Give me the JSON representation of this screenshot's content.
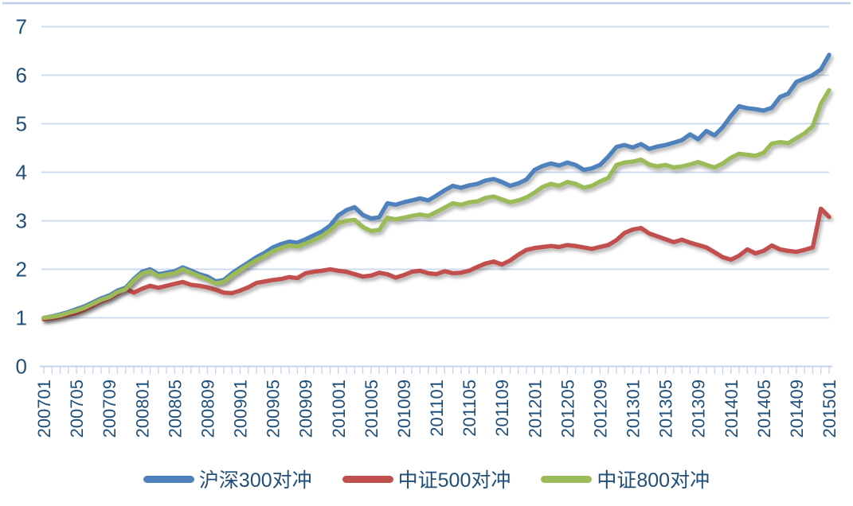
{
  "chart_data": {
    "type": "line",
    "x": [
      "200701",
      "200702",
      "200703",
      "200704",
      "200705",
      "200706",
      "200707",
      "200708",
      "200709",
      "200710",
      "200711",
      "200712",
      "200801",
      "200802",
      "200803",
      "200804",
      "200805",
      "200806",
      "200807",
      "200808",
      "200809",
      "200810",
      "200811",
      "200812",
      "200901",
      "200902",
      "200903",
      "200904",
      "200905",
      "200906",
      "200907",
      "200908",
      "200909",
      "200910",
      "200911",
      "200912",
      "201001",
      "201002",
      "201003",
      "201004",
      "201005",
      "201006",
      "201007",
      "201008",
      "201009",
      "201010",
      "201011",
      "201012",
      "201101",
      "201102",
      "201103",
      "201104",
      "201105",
      "201106",
      "201107",
      "201108",
      "201109",
      "201110",
      "201111",
      "201112",
      "201201",
      "201202",
      "201203",
      "201204",
      "201205",
      "201206",
      "201207",
      "201208",
      "201209",
      "201210",
      "201211",
      "201212",
      "201301",
      "201302",
      "201303",
      "201304",
      "201305",
      "201306",
      "201307",
      "201308",
      "201309",
      "201310",
      "201311",
      "201312",
      "201401",
      "201402",
      "201403",
      "201404",
      "201405",
      "201406",
      "201407",
      "201408",
      "201409",
      "201410",
      "201411",
      "201412",
      "201501"
    ],
    "xtick_labels": [
      "200701",
      "200705",
      "200709",
      "200801",
      "200805",
      "200809",
      "200901",
      "200905",
      "200909",
      "201001",
      "201005",
      "201009",
      "201101",
      "201105",
      "201109",
      "201201",
      "201205",
      "201209",
      "201301",
      "201305",
      "201309",
      "201401",
      "201405",
      "201409",
      "201501"
    ],
    "xtick_every": 4,
    "yticks": [
      0,
      1,
      2,
      3,
      4,
      5,
      6,
      7
    ],
    "ylim": [
      0,
      7
    ],
    "grid": "horizontal",
    "legend_position": "bottom",
    "series": [
      {
        "name": "沪深300对冲",
        "color": "#4F81BD",
        "values": [
          1.0,
          1.03,
          1.07,
          1.12,
          1.18,
          1.24,
          1.32,
          1.4,
          1.46,
          1.56,
          1.62,
          1.8,
          1.95,
          2.0,
          1.9,
          1.93,
          1.96,
          2.04,
          1.97,
          1.9,
          1.85,
          1.75,
          1.78,
          1.92,
          2.03,
          2.14,
          2.25,
          2.34,
          2.45,
          2.52,
          2.57,
          2.55,
          2.62,
          2.7,
          2.78,
          2.9,
          3.11,
          3.22,
          3.28,
          3.12,
          3.05,
          3.07,
          3.36,
          3.33,
          3.38,
          3.42,
          3.46,
          3.42,
          3.52,
          3.63,
          3.72,
          3.68,
          3.73,
          3.76,
          3.83,
          3.86,
          3.8,
          3.72,
          3.77,
          3.85,
          4.05,
          4.13,
          4.18,
          4.14,
          4.2,
          4.15,
          4.05,
          4.08,
          4.15,
          4.32,
          4.52,
          4.56,
          4.51,
          4.58,
          4.48,
          4.53,
          4.56,
          4.61,
          4.66,
          4.78,
          4.68,
          4.85,
          4.76,
          4.93,
          5.16,
          5.36,
          5.32,
          5.3,
          5.27,
          5.33,
          5.55,
          5.62,
          5.86,
          5.93,
          6.0,
          6.12,
          6.42
        ]
      },
      {
        "name": "中证500对冲",
        "color": "#C0504D",
        "values": [
          0.97,
          0.99,
          1.02,
          1.06,
          1.1,
          1.17,
          1.25,
          1.34,
          1.4,
          1.5,
          1.6,
          1.52,
          1.6,
          1.66,
          1.62,
          1.66,
          1.7,
          1.74,
          1.68,
          1.66,
          1.63,
          1.58,
          1.52,
          1.51,
          1.56,
          1.63,
          1.72,
          1.75,
          1.78,
          1.8,
          1.84,
          1.82,
          1.92,
          1.95,
          1.97,
          2.0,
          1.97,
          1.95,
          1.9,
          1.85,
          1.87,
          1.93,
          1.9,
          1.83,
          1.88,
          1.95,
          1.97,
          1.92,
          1.9,
          1.96,
          1.92,
          1.93,
          1.97,
          2.05,
          2.12,
          2.16,
          2.1,
          2.18,
          2.3,
          2.4,
          2.44,
          2.46,
          2.48,
          2.46,
          2.5,
          2.48,
          2.45,
          2.42,
          2.46,
          2.5,
          2.6,
          2.75,
          2.82,
          2.85,
          2.74,
          2.68,
          2.62,
          2.56,
          2.61,
          2.55,
          2.5,
          2.45,
          2.35,
          2.25,
          2.2,
          2.28,
          2.41,
          2.33,
          2.38,
          2.49,
          2.41,
          2.38,
          2.36,
          2.4,
          2.45,
          3.25,
          3.08
        ]
      },
      {
        "name": "中证800对冲",
        "color": "#9BBB59",
        "values": [
          1.0,
          1.02,
          1.05,
          1.1,
          1.15,
          1.21,
          1.29,
          1.37,
          1.43,
          1.53,
          1.59,
          1.77,
          1.91,
          1.96,
          1.86,
          1.89,
          1.92,
          2.0,
          1.93,
          1.86,
          1.8,
          1.71,
          1.74,
          1.87,
          1.98,
          2.09,
          2.19,
          2.27,
          2.37,
          2.44,
          2.49,
          2.47,
          2.53,
          2.6,
          2.68,
          2.8,
          2.95,
          3.0,
          3.02,
          2.87,
          2.79,
          2.81,
          3.06,
          3.03,
          3.06,
          3.1,
          3.13,
          3.1,
          3.18,
          3.27,
          3.36,
          3.33,
          3.38,
          3.4,
          3.47,
          3.5,
          3.44,
          3.38,
          3.42,
          3.48,
          3.58,
          3.7,
          3.76,
          3.72,
          3.8,
          3.76,
          3.68,
          3.72,
          3.81,
          3.88,
          4.15,
          4.2,
          4.22,
          4.26,
          4.16,
          4.12,
          4.15,
          4.1,
          4.12,
          4.16,
          4.21,
          4.15,
          4.1,
          4.18,
          4.3,
          4.38,
          4.36,
          4.34,
          4.4,
          4.59,
          4.62,
          4.6,
          4.7,
          4.8,
          4.95,
          5.41,
          5.69
        ]
      }
    ]
  },
  "colors": {
    "axis_text": "#1F4E79",
    "gridline": "#C9D8EF",
    "axis_line": "#C3D3EC",
    "top_border": "#BCCEE8",
    "background": "#FFFFFF"
  }
}
